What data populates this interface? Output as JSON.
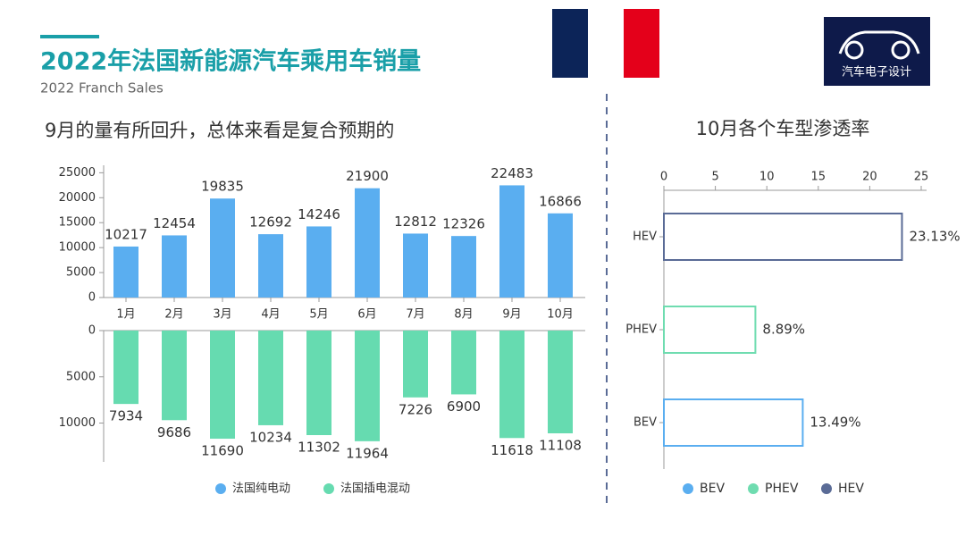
{
  "header": {
    "title": "2022年法国新能源汽车乘用车销量",
    "subtitle": "2022 Franch Sales",
    "logo_text": "汽车电子设计"
  },
  "chart_data": [
    {
      "type": "mirrored-bar",
      "title": "9月的量有所回升，总体来看是复合预期的",
      "categories": [
        "1月",
        "2月",
        "3月",
        "4月",
        "5月",
        "6月",
        "7月",
        "8月",
        "9月",
        "10月"
      ],
      "series": [
        {
          "name": "法国纯电动",
          "color": "#5aaef0",
          "values": [
            10217,
            12454,
            19835,
            12692,
            14246,
            21900,
            12812,
            12326,
            22483,
            16866
          ]
        },
        {
          "name": "法国插电混动",
          "color": "#66dbb0",
          "axis": "y2",
          "values": [
            7934,
            9686,
            11690,
            10234,
            11302,
            11964,
            7226,
            6900,
            11618,
            11108
          ]
        }
      ],
      "ylim": [
        0,
        26500
      ],
      "yticks": [
        0,
        5000,
        10000,
        15000,
        20000,
        25000
      ],
      "y2lim": [
        0,
        14200
      ],
      "y2ticks": [
        0,
        5000,
        10000
      ]
    },
    {
      "type": "hbar-outline",
      "title": "10月各个车型渗透率",
      "categories": [
        "BEV",
        "PHEV",
        "HEV"
      ],
      "colors": [
        "#5aaef0",
        "#6fdcb0",
        "#5a6b96"
      ],
      "values": [
        13.49,
        8.89,
        23.13
      ],
      "value_labels": [
        "13.49%",
        "8.89%",
        "23.13%"
      ],
      "xlim": [
        0,
        25
      ],
      "xticks": [
        0,
        5,
        10,
        15,
        20,
        25
      ]
    }
  ]
}
